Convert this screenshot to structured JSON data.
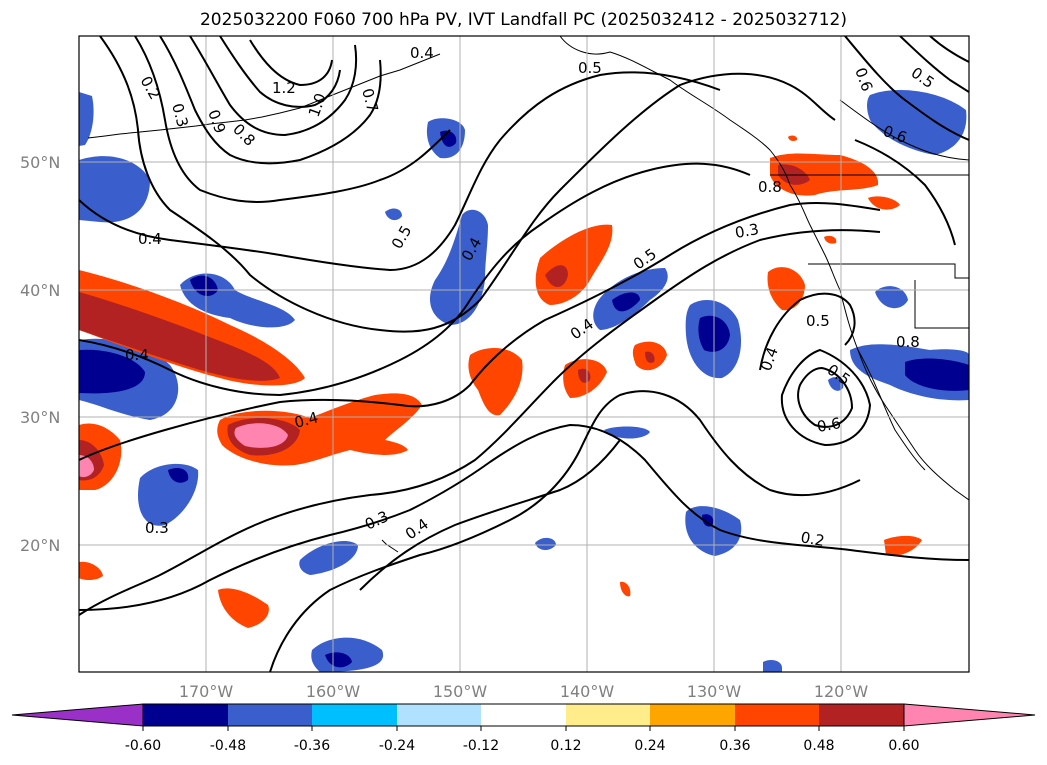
{
  "title": "2025032200 F060 700 hPa PV, IVT Landfall PC (2025032412 - 2025032712)",
  "map": {
    "lat_labels": [
      "50°N",
      "40°N",
      "30°N",
      "20°N"
    ],
    "lon_labels": [
      "170°W",
      "160°W",
      "150°W",
      "140°W",
      "130°W",
      "120°W"
    ],
    "gridline_color": "#b0b0b0",
    "contour_labels": [
      "0.2",
      "0.3",
      "1.2",
      "0.8",
      "0.7",
      "1.0",
      "0.9",
      "0.4",
      "0.5",
      "0.4",
      "0.5",
      "0.6",
      "0.5",
      "0.6",
      "0.4",
      "0.3",
      "0.5",
      "0.4",
      "0.5",
      "0.4",
      "0.6",
      "0.4",
      "0.3",
      "0.3",
      "0.4",
      "0.2",
      "0.8",
      "0.5",
      "0.8",
      "0.4"
    ]
  },
  "colorbar": {
    "ticks": [
      "-0.60",
      "-0.48",
      "-0.36",
      "-0.24",
      "-0.12",
      "0.12",
      "0.24",
      "0.36",
      "0.48",
      "0.60"
    ],
    "colors": [
      "#9b30c8",
      "#000090",
      "#3a5fcd",
      "#00bfff",
      "#b0e2ff",
      "#ffffff",
      "#ffec8b",
      "#ffa500",
      "#ff4500",
      "#b22222",
      "#ff85b0"
    ]
  }
}
